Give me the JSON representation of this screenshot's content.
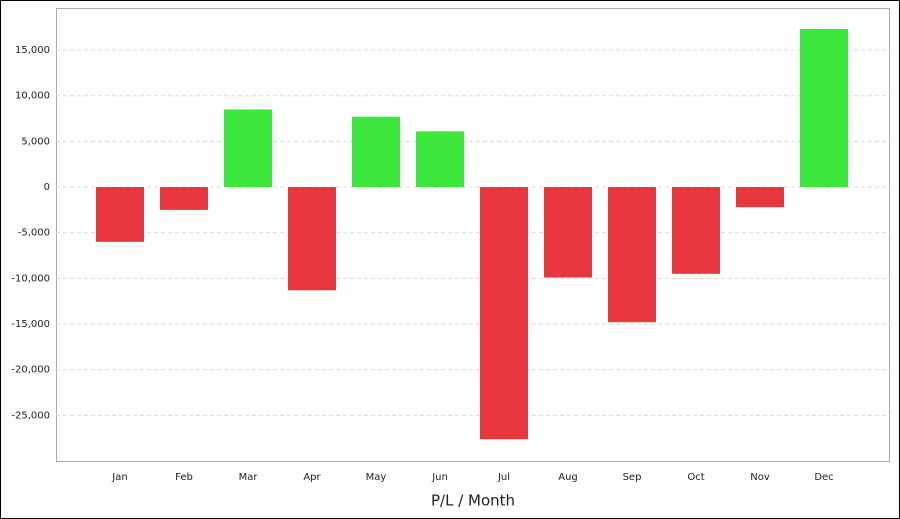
{
  "chart_data": {
    "type": "bar",
    "x_label": "P/L / Month",
    "categories": [
      "Jan",
      "Feb",
      "Mar",
      "Apr",
      "May",
      "Jun",
      "Jul",
      "Aug",
      "Sep",
      "Oct",
      "Nov",
      "Dec"
    ],
    "values": [
      -6000,
      -2500,
      8500,
      -11300,
      7700,
      6100,
      -27600,
      -9900,
      -14800,
      -9500,
      -2200,
      17300
    ],
    "positive_color": "#3de63d",
    "negative_color": "#e8373c",
    "ylim": [
      -30100,
      19600
    ],
    "yticks": [
      {
        "value": -25000,
        "label": "-25,000"
      },
      {
        "value": -20000,
        "label": "-20,000"
      },
      {
        "value": -15000,
        "label": "-15,000"
      },
      {
        "value": -10000,
        "label": "-10,000"
      },
      {
        "value": -5000,
        "label": "-5,000"
      },
      0,
      {
        "value": 5000,
        "label": "5,000"
      },
      {
        "value": 10000,
        "label": "10,000"
      },
      {
        "value": 15000,
        "label": "15,000"
      }
    ],
    "grid": true
  }
}
